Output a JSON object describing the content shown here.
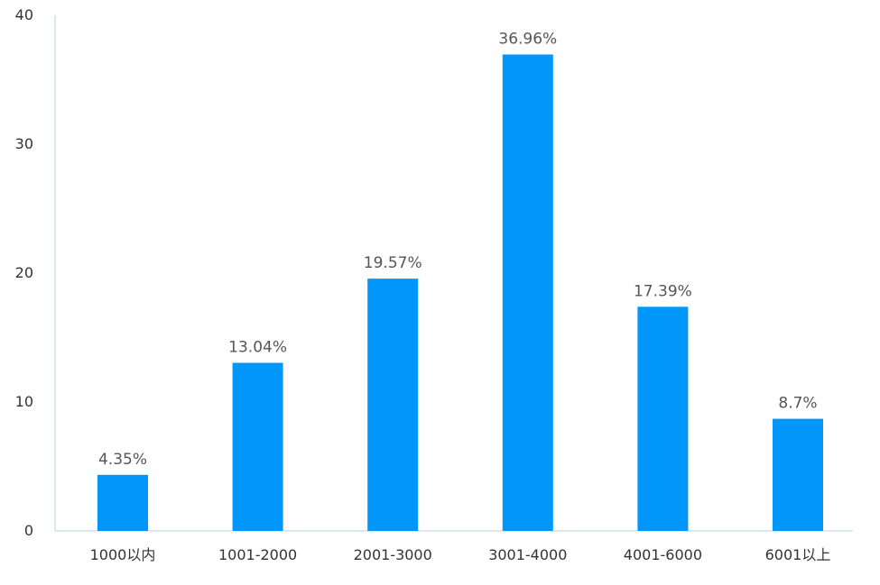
{
  "chart_data": {
    "type": "bar",
    "categories": [
      "1000以内",
      "1001-2000",
      "2001-3000",
      "3001-4000",
      "4001-6000",
      "6001以上"
    ],
    "values": [
      4.35,
      13.04,
      19.57,
      36.96,
      17.39,
      8.7
    ],
    "data_labels": [
      "4.35%",
      "13.04%",
      "19.57%",
      "36.96%",
      "17.39%",
      "8.7%"
    ],
    "y_ticks": [
      0,
      10,
      20,
      30,
      40
    ],
    "ylim": [
      0,
      40
    ],
    "title": "",
    "xlabel": "",
    "ylabel": "",
    "grid": false,
    "legend": "none",
    "colors": {
      "bar": "#0096FA",
      "axis": "#C9D6E6",
      "tick_text": "#333333",
      "label_text": "#555555"
    }
  }
}
